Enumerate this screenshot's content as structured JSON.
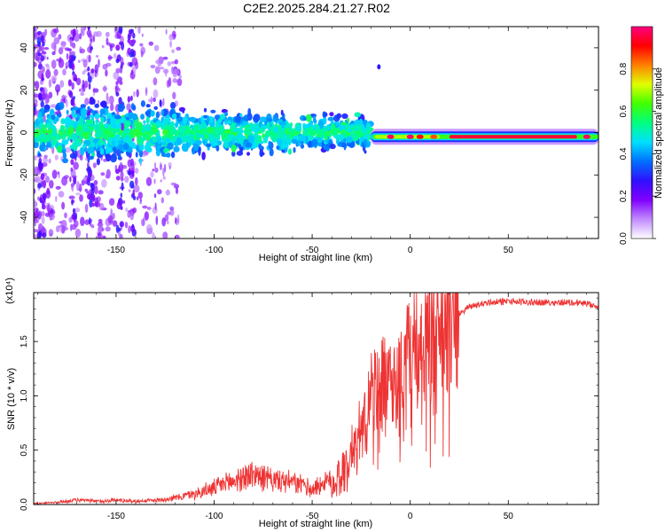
{
  "title": "C2E2.2025.284.21.27.R02",
  "chart_data": [
    {
      "type": "heatmap",
      "xlabel": "Height of straight line (km)",
      "ylabel": "Frequency (Hz)",
      "xlim": [
        -192,
        96
      ],
      "ylim": [
        -50,
        50
      ],
      "x_ticks": [
        -150,
        -100,
        -50,
        0,
        50
      ],
      "y_ticks": [
        -40,
        -20,
        0,
        20,
        40
      ],
      "colorbar": {
        "label": "Normalized spectral amplitude",
        "range": [
          0.0,
          1.0
        ],
        "ticks": [
          "0.0",
          "0.2",
          "0.4",
          "0.6",
          "0.8"
        ],
        "colors": [
          "#ffffff",
          "#c18bff",
          "#8000ff",
          "#3010ff",
          "#0070ff",
          "#00e0ff",
          "#00ff80",
          "#40ff00",
          "#e0ff00",
          "#ff8000",
          "#ff0000",
          "#ff0080"
        ]
      },
      "bands": [
        {
          "x_range": [
            -192,
            -20
          ],
          "center_hz": 0,
          "half_width_hz": 6,
          "level": 0.3
        },
        {
          "x_range": [
            -20,
            96
          ],
          "center_hz": -2,
          "half_width_hz": 1.5,
          "level": 0.95
        }
      ]
    },
    {
      "type": "line",
      "xlabel": "Height of straight line (km)",
      "ylabel": "SNR (10 * v/v)",
      "y_scale_note": "(x10⁴)",
      "xlim": [
        -192,
        96
      ],
      "ylim": [
        0,
        1.95
      ],
      "x_ticks": [
        -150,
        -100,
        -50,
        0,
        50
      ],
      "y_ticks": [
        "0.0",
        "0.5",
        "1.0",
        "1.5"
      ],
      "line_color": "#ee3333",
      "series": [
        {
          "x": [
            -192,
            -180,
            -170,
            -160,
            -150,
            -140,
            -130,
            -120,
            -110,
            -100,
            -90,
            -80,
            -70,
            -60,
            -50,
            -40,
            -35,
            -30,
            -25,
            -20,
            -15,
            -10,
            -5,
            0,
            5,
            10,
            15,
            20,
            25,
            30,
            40,
            50,
            60,
            70,
            80,
            90,
            96
          ],
          "y": [
            0.01,
            0.02,
            0.04,
            0.03,
            0.04,
            0.03,
            0.04,
            0.06,
            0.1,
            0.15,
            0.22,
            0.28,
            0.22,
            0.2,
            0.15,
            0.22,
            0.3,
            0.45,
            0.7,
            1.0,
            1.25,
            1.0,
            1.2,
            1.4,
            1.35,
            1.5,
            1.6,
            1.7,
            1.75,
            1.82,
            1.86,
            1.87,
            1.86,
            1.86,
            1.86,
            1.85,
            1.8
          ]
        }
      ]
    }
  ]
}
